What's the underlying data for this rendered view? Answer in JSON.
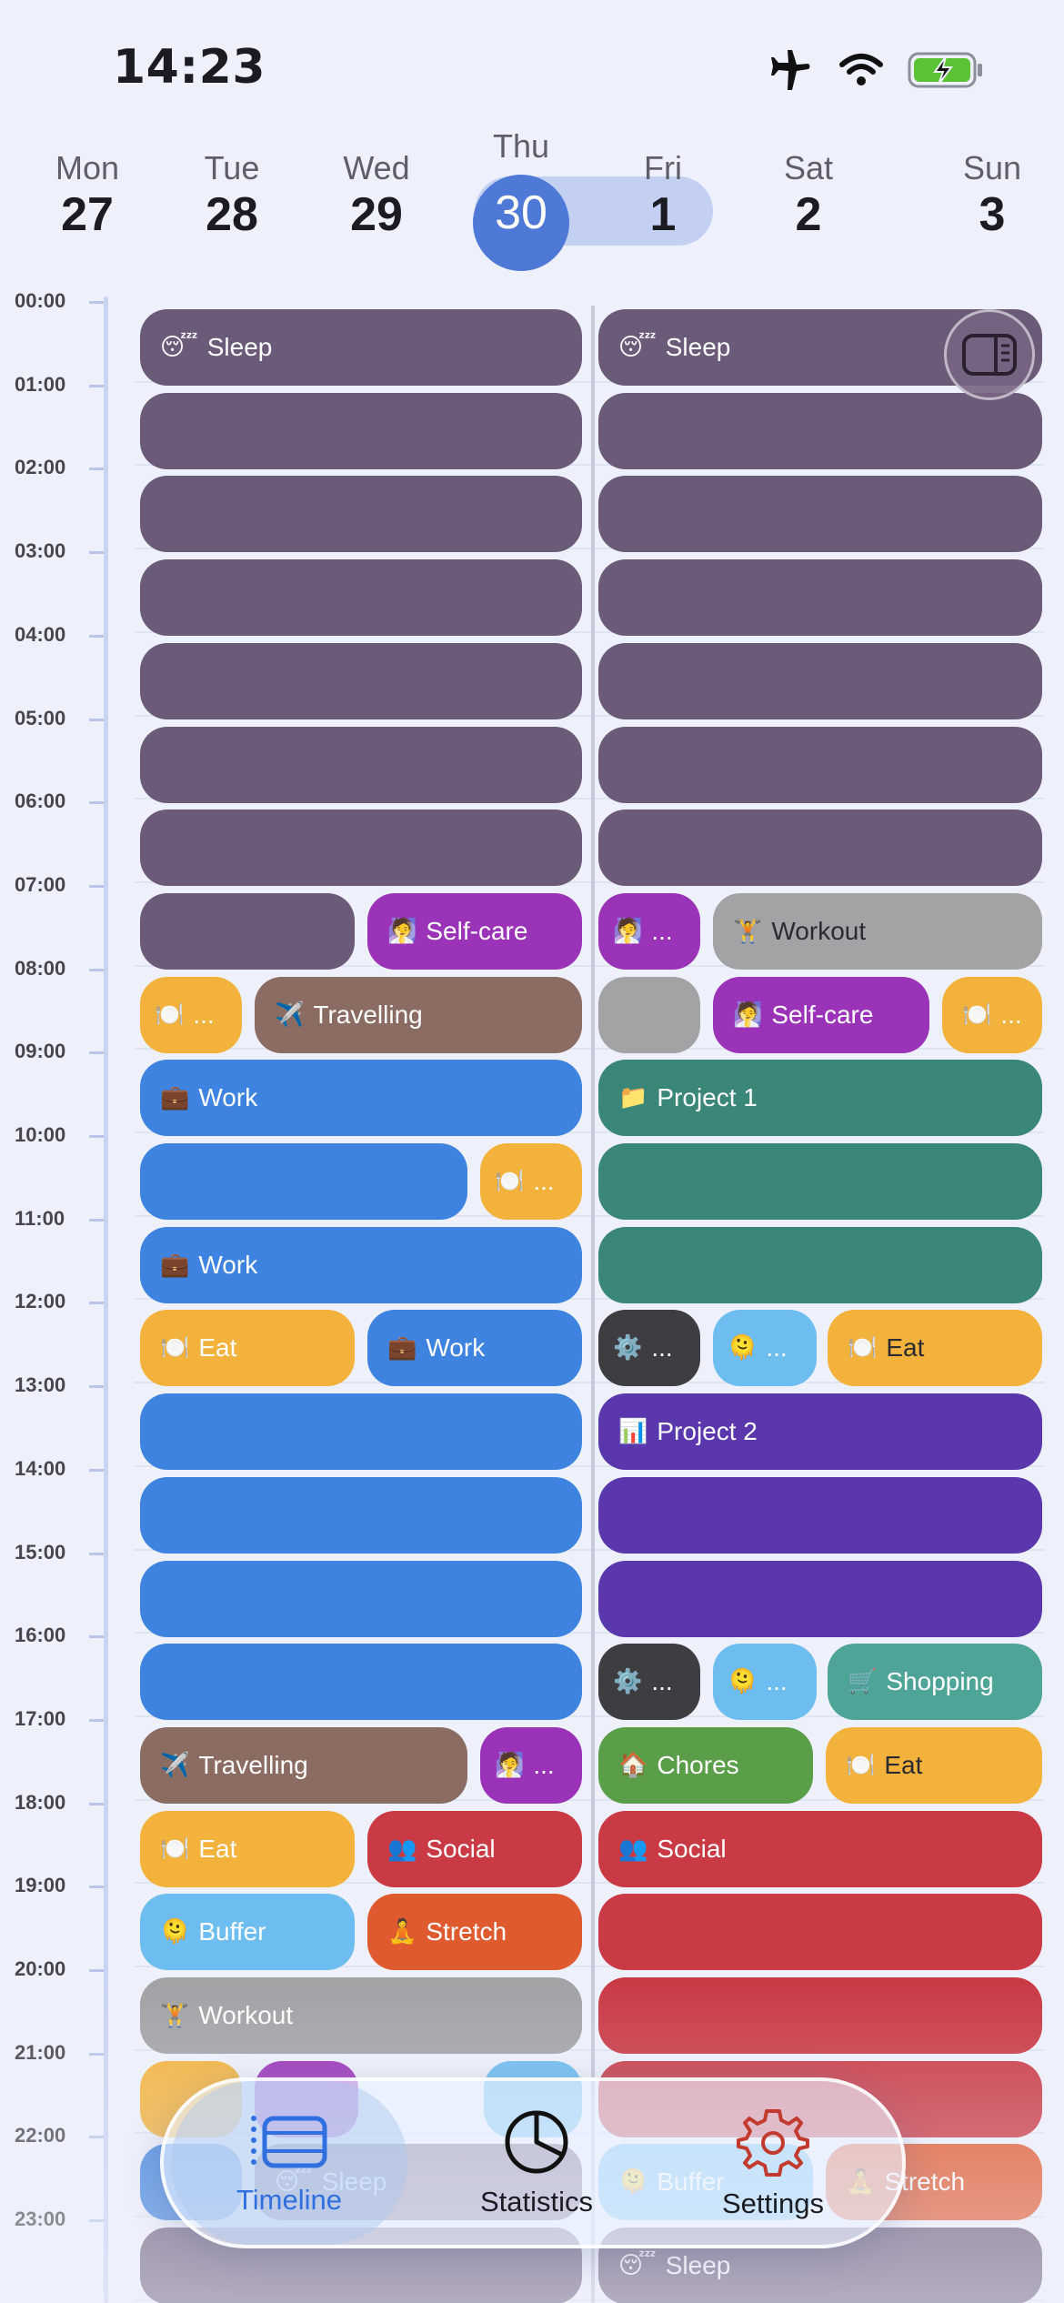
{
  "status": {
    "time": "14:23",
    "icons": [
      "airplane-icon",
      "wifi-icon",
      "battery-charging-icon"
    ]
  },
  "days": [
    {
      "name": "Mon",
      "num": "27"
    },
    {
      "name": "Tue",
      "num": "28"
    },
    {
      "name": "Wed",
      "num": "29"
    },
    {
      "name": "Thu",
      "num": "30"
    },
    {
      "name": "Fri",
      "num": "1"
    },
    {
      "name": "Sat",
      "num": "2"
    },
    {
      "name": "Sun",
      "num": "3"
    }
  ],
  "selected_day": "Thu",
  "hours": [
    "00:00",
    "01:00",
    "02:00",
    "03:00",
    "04:00",
    "05:00",
    "06:00",
    "07:00",
    "08:00",
    "09:00",
    "10:00",
    "11:00",
    "12:00",
    "13:00",
    "14:00",
    "15:00",
    "16:00",
    "17:00",
    "18:00",
    "19:00",
    "20:00",
    "21:00",
    "22:00",
    "23:00"
  ],
  "categories": {
    "sleep": {
      "color": "#6b5a78"
    },
    "selfcare": {
      "color": "#9b33b8"
    },
    "eat": {
      "color": "#f2b23c"
    },
    "travelling": {
      "color": "#8b6c62"
    },
    "work": {
      "color": "#3f83e0"
    },
    "workout": {
      "color": "#a3a3a6"
    },
    "project1": {
      "color": "#3a877a"
    },
    "project2": {
      "color": "#5a37ad"
    },
    "settings": {
      "color": "#3d3d42"
    },
    "buffer": {
      "color": "#6dbdf0"
    },
    "shopping": {
      "color": "#4ea597"
    },
    "chores": {
      "color": "#5a9e4a"
    },
    "social": {
      "color": "#c93a45"
    },
    "stretch": {
      "color": "#e05a30"
    }
  },
  "thursday": [
    {
      "slot": 0,
      "cat": "sleep",
      "icon": "😴",
      "label": "Sleep"
    },
    {
      "slot": 1,
      "cat": "sleep",
      "icon": "",
      "label": ""
    },
    {
      "slot": 2,
      "cat": "sleep",
      "icon": "",
      "label": ""
    },
    {
      "slot": 3,
      "cat": "sleep",
      "icon": "",
      "label": ""
    },
    {
      "slot": 4,
      "cat": "sleep",
      "icon": "",
      "label": ""
    },
    {
      "slot": 5,
      "cat": "sleep",
      "icon": "",
      "label": ""
    },
    {
      "slot": 6,
      "cat": "sleep",
      "icon": "",
      "label": ""
    },
    {
      "slot": 7,
      "cat": "sleep",
      "icon": "",
      "label": "",
      "part": "a"
    },
    {
      "slot": 7,
      "cat": "selfcare",
      "icon": "🧖",
      "label": "Self-care",
      "part": "b"
    },
    {
      "slot": 8,
      "cat": "eat",
      "icon": "🍽️",
      "label": "...",
      "part": "s"
    },
    {
      "slot": 8,
      "cat": "travelling",
      "icon": "✈️",
      "label": "Travelling",
      "part": "rest"
    },
    {
      "slot": 9,
      "cat": "work",
      "icon": "💼",
      "label": "Work"
    },
    {
      "slot": 10,
      "cat": "work",
      "icon": "",
      "label": "",
      "part": "big"
    },
    {
      "slot": 10,
      "cat": "eat",
      "icon": "🍽️",
      "label": "...",
      "part": "tail"
    },
    {
      "slot": 11,
      "cat": "work",
      "icon": "💼",
      "label": "Work"
    },
    {
      "slot": 12,
      "cat": "eat",
      "icon": "🍽️",
      "label": "Eat",
      "part": "a"
    },
    {
      "slot": 12,
      "cat": "work",
      "icon": "💼",
      "label": "Work",
      "part": "b"
    },
    {
      "slot": 13,
      "cat": "work",
      "icon": "",
      "label": ""
    },
    {
      "slot": 14,
      "cat": "work",
      "icon": "",
      "label": ""
    },
    {
      "slot": 15,
      "cat": "work",
      "icon": "",
      "label": ""
    },
    {
      "slot": 16,
      "cat": "work",
      "icon": "",
      "label": ""
    },
    {
      "slot": 17,
      "cat": "travelling",
      "icon": "✈️",
      "label": "Travelling",
      "part": "big"
    },
    {
      "slot": 17,
      "cat": "selfcare",
      "icon": "🧖",
      "label": "...",
      "part": "tail"
    },
    {
      "slot": 18,
      "cat": "eat",
      "icon": "🍽️",
      "label": "Eat",
      "part": "a"
    },
    {
      "slot": 18,
      "cat": "social",
      "icon": "👥",
      "label": "Social",
      "part": "b"
    },
    {
      "slot": 19,
      "cat": "buffer",
      "icon": "🫠",
      "label": "Buffer",
      "part": "a"
    },
    {
      "slot": 19,
      "cat": "stretch",
      "icon": "🧘",
      "label": "Stretch",
      "part": "b"
    },
    {
      "slot": 20,
      "cat": "workout",
      "icon": "🏋️",
      "label": "Workout"
    },
    {
      "slot": 21,
      "cat": "eat",
      "icon": "",
      "label": "",
      "part": "s"
    },
    {
      "slot": 21,
      "cat": "selfcare",
      "icon": "",
      "label": "",
      "part": "m"
    },
    {
      "slot": 21,
      "cat": "buffer",
      "icon": "",
      "label": "",
      "part": "r"
    },
    {
      "slot": 22,
      "cat": "work",
      "icon": "",
      "label": "",
      "part": "s"
    },
    {
      "slot": 22,
      "cat": "sleep",
      "icon": "😴",
      "label": "Sleep",
      "part": "rest"
    },
    {
      "slot": 23,
      "cat": "sleep",
      "icon": "",
      "label": ""
    }
  ],
  "friday": [
    {
      "slot": 0,
      "cat": "sleep",
      "icon": "😴",
      "label": "Sleep"
    },
    {
      "slot": 1,
      "cat": "sleep",
      "icon": "",
      "label": ""
    },
    {
      "slot": 2,
      "cat": "sleep",
      "icon": "",
      "label": ""
    },
    {
      "slot": 3,
      "cat": "sleep",
      "icon": "",
      "label": ""
    },
    {
      "slot": 4,
      "cat": "sleep",
      "icon": "",
      "label": ""
    },
    {
      "slot": 5,
      "cat": "sleep",
      "icon": "",
      "label": ""
    },
    {
      "slot": 6,
      "cat": "sleep",
      "icon": "",
      "label": ""
    },
    {
      "slot": 7,
      "cat": "selfcare",
      "icon": "🧖",
      "label": "...",
      "part": "s"
    },
    {
      "slot": 7,
      "cat": "workout",
      "icon": "🏋️",
      "label": "Workout",
      "part": "rest",
      "dark": true
    },
    {
      "slot": 8,
      "cat": "workout",
      "icon": "",
      "label": "",
      "part": "s"
    },
    {
      "slot": 8,
      "cat": "selfcare",
      "icon": "🧖",
      "label": "Self-care",
      "part": "m2"
    },
    {
      "slot": 8,
      "cat": "eat",
      "icon": "🍽️",
      "label": "...",
      "part": "r"
    },
    {
      "slot": 9,
      "cat": "project1",
      "icon": "📁",
      "label": "Project 1"
    },
    {
      "slot": 10,
      "cat": "project1",
      "icon": "",
      "label": ""
    },
    {
      "slot": 11,
      "cat": "project1",
      "icon": "",
      "label": ""
    },
    {
      "slot": 12,
      "cat": "settings",
      "icon": "⚙️",
      "label": "...",
      "part": "s"
    },
    {
      "slot": 12,
      "cat": "buffer",
      "icon": "🫠",
      "label": "...",
      "part": "m"
    },
    {
      "slot": 12,
      "cat": "eat",
      "icon": "🍽️",
      "label": "Eat",
      "part": "r2",
      "dark": true
    },
    {
      "slot": 13,
      "cat": "project2",
      "icon": "📊",
      "label": "Project 2"
    },
    {
      "slot": 14,
      "cat": "project2",
      "icon": "",
      "label": ""
    },
    {
      "slot": 15,
      "cat": "project2",
      "icon": "",
      "label": ""
    },
    {
      "slot": 16,
      "cat": "settings",
      "icon": "⚙️",
      "label": "...",
      "part": "s"
    },
    {
      "slot": 16,
      "cat": "buffer",
      "icon": "🫠",
      "label": "...",
      "part": "m"
    },
    {
      "slot": 16,
      "cat": "shopping",
      "icon": "🛒",
      "label": "Shopping",
      "part": "r2"
    },
    {
      "slot": 17,
      "cat": "chores",
      "icon": "🏠",
      "label": "Chores",
      "part": "a"
    },
    {
      "slot": 17,
      "cat": "eat",
      "icon": "🍽️",
      "label": "Eat",
      "part": "b",
      "dark": true
    },
    {
      "slot": 18,
      "cat": "social",
      "icon": "👥",
      "label": "Social"
    },
    {
      "slot": 19,
      "cat": "social",
      "icon": "",
      "label": ""
    },
    {
      "slot": 20,
      "cat": "social",
      "icon": "",
      "label": ""
    },
    {
      "slot": 21,
      "cat": "social",
      "icon": "",
      "label": ""
    },
    {
      "slot": 22,
      "cat": "buffer",
      "icon": "🫠",
      "label": "Buffer",
      "part": "a"
    },
    {
      "slot": 22,
      "cat": "stretch",
      "icon": "🧘",
      "label": "Stretch",
      "part": "b"
    },
    {
      "slot": 23,
      "cat": "sleep",
      "icon": "😴",
      "label": "Sleep"
    }
  ],
  "tabs": [
    {
      "label": "Timeline",
      "icon": "timeline-icon",
      "active": true
    },
    {
      "label": "Statistics",
      "icon": "pie-chart-icon",
      "active": false
    },
    {
      "label": "Settings",
      "icon": "gear-icon",
      "active": false
    }
  ],
  "colors": {
    "accent": "#4e79d6",
    "tab_active": "#2f6fe0",
    "background": "#eef1fb"
  }
}
